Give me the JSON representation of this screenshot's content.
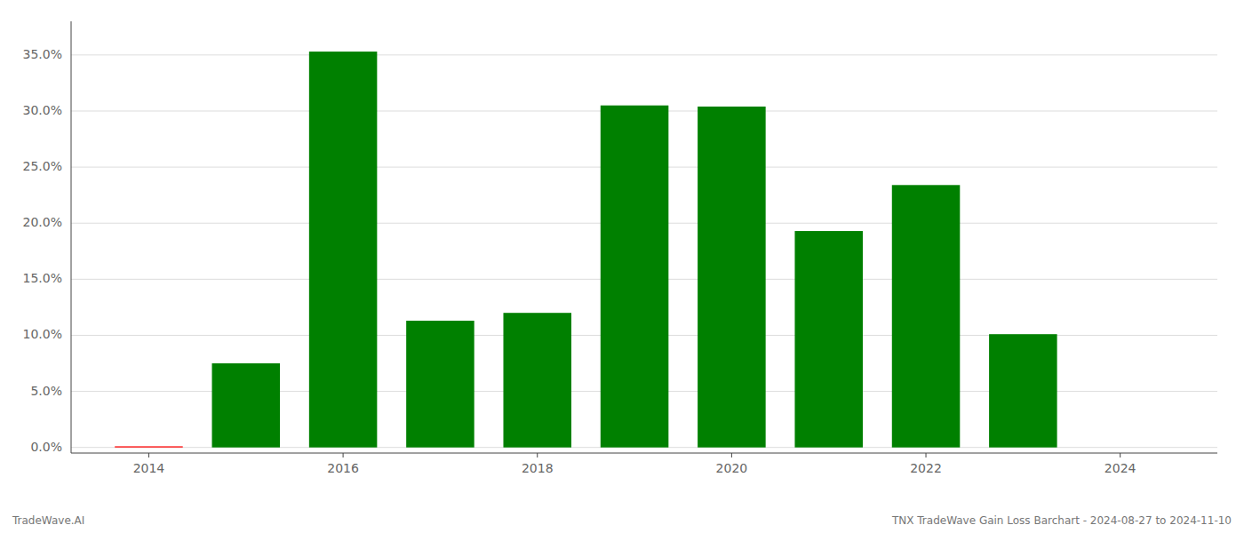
{
  "chart_data": {
    "type": "bar",
    "x": [
      2014,
      2015,
      2016,
      2017,
      2018,
      2019,
      2020,
      2021,
      2022,
      2023
    ],
    "values": [
      0.001,
      0.075,
      0.353,
      0.113,
      0.12,
      0.305,
      0.304,
      0.193,
      0.234,
      0.101
    ],
    "colors": [
      "#ff0000",
      "#008000",
      "#008000",
      "#008000",
      "#008000",
      "#008000",
      "#008000",
      "#008000",
      "#008000",
      "#008000"
    ],
    "xlim": [
      2013.2,
      2025.0
    ],
    "ylim": [
      -0.005,
      0.38
    ],
    "xticks": [
      2014,
      2016,
      2018,
      2020,
      2022,
      2024
    ],
    "yticks": [
      {
        "value": 0.0,
        "label": "0.0%"
      },
      {
        "value": 0.05,
        "label": "5.0%"
      },
      {
        "value": 0.1,
        "label": "10.0%"
      },
      {
        "value": 0.15,
        "label": "15.0%"
      },
      {
        "value": 0.2,
        "label": "20.0%"
      },
      {
        "value": 0.25,
        "label": "25.0%"
      },
      {
        "value": 0.3,
        "label": "30.0%"
      },
      {
        "value": 0.35,
        "label": "35.0%"
      }
    ],
    "grid": true,
    "annotations": [
      "TradeWave.AI",
      "TNX TradeWave Gain Loss Barchart - 2024-08-27 to 2024-11-10"
    ]
  }
}
